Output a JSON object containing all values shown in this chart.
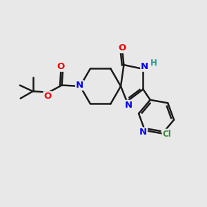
{
  "bg_color": "#e8e8e8",
  "bond_color": "#1a1a1a",
  "bond_width": 1.8,
  "atom_colors": {
    "N": "#0000ee",
    "O": "#ee0000",
    "Cl": "#3a8a3a",
    "H": "#2a9a9a",
    "C": "#1a1a1a"
  },
  "font_size": 8.5
}
